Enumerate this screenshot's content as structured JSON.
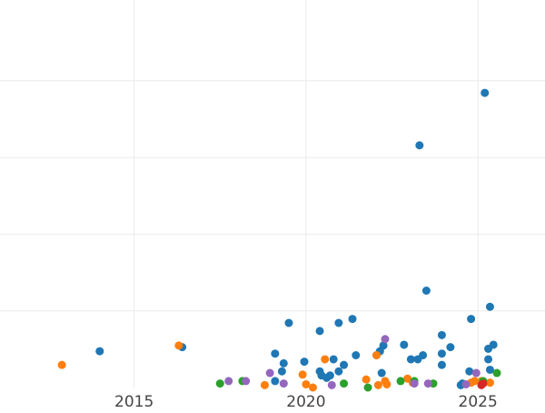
{
  "chart_data": {
    "type": "scatter",
    "title": "",
    "xlabel": "",
    "ylabel": "",
    "x_ticks": [
      2015,
      2020,
      2025
    ],
    "x_tick_labels": [
      "2015",
      "2020",
      "2025"
    ],
    "xlim": [
      2011.1,
      2026.95
    ],
    "ylim": [
      0,
      48
    ],
    "y_gridlines": [
      9.5,
      19,
      28.5,
      38
    ],
    "grid": true,
    "legend": "none",
    "colors": {
      "blue": "#1f77b4",
      "orange": "#ff7f0e",
      "green": "#2ca02c",
      "purple": "#9467bd",
      "red": "#d62728"
    },
    "series": [
      {
        "color": "blue",
        "points": [
          [
            2014.0,
            4.5
          ],
          [
            2016.4,
            5.0
          ],
          [
            2019.1,
            4.2
          ],
          [
            2019.3,
            2.0
          ],
          [
            2019.35,
            3.0
          ],
          [
            2019.5,
            8.0
          ],
          [
            2019.1,
            0.8
          ],
          [
            2019.95,
            3.2
          ],
          [
            2020.4,
            7.0
          ],
          [
            2020.4,
            2.0
          ],
          [
            2020.45,
            1.5
          ],
          [
            2020.6,
            1.2
          ],
          [
            2020.7,
            1.5
          ],
          [
            2020.8,
            3.5
          ],
          [
            2020.95,
            2.0
          ],
          [
            2020.95,
            8.0
          ],
          [
            2021.1,
            2.8
          ],
          [
            2021.35,
            8.5
          ],
          [
            2021.45,
            4.0
          ],
          [
            2022.05,
            4.0
          ],
          [
            2022.15,
            4.5
          ],
          [
            2022.2,
            1.8
          ],
          [
            2022.25,
            5.2
          ],
          [
            2022.85,
            5.3
          ],
          [
            2023.05,
            3.5
          ],
          [
            2023.25,
            3.5
          ],
          [
            2023.3,
            30.0
          ],
          [
            2023.4,
            4.0
          ],
          [
            2023.5,
            12.0
          ],
          [
            2023.95,
            4.2
          ],
          [
            2023.95,
            6.5
          ],
          [
            2023.95,
            2.8
          ],
          [
            2024.2,
            5.0
          ],
          [
            2024.5,
            0.3
          ],
          [
            2024.55,
            0.5
          ],
          [
            2024.75,
            2.0
          ],
          [
            2024.8,
            8.5
          ],
          [
            2025.2,
            36.5
          ],
          [
            2025.3,
            4.8
          ],
          [
            2025.35,
            10.0
          ],
          [
            2025.35,
            2.2
          ],
          [
            2025.3,
            3.5
          ],
          [
            2025.45,
            5.3
          ]
        ]
      },
      {
        "color": "orange",
        "points": [
          [
            2012.9,
            2.8
          ],
          [
            2016.3,
            5.2
          ],
          [
            2018.8,
            0.3
          ],
          [
            2019.9,
            1.6
          ],
          [
            2020.0,
            0.4
          ],
          [
            2020.2,
            0.0
          ],
          [
            2020.55,
            3.5
          ],
          [
            2021.75,
            1.0
          ],
          [
            2022.05,
            4.0
          ],
          [
            2022.1,
            0.3
          ],
          [
            2022.3,
            0.8
          ],
          [
            2022.35,
            0.4
          ],
          [
            2022.95,
            1.1
          ],
          [
            2023.1,
            0.6
          ],
          [
            2024.8,
            0.6
          ],
          [
            2024.9,
            0.8
          ],
          [
            2025.1,
            0.8
          ],
          [
            2025.35,
            0.6
          ]
        ]
      },
      {
        "color": "green",
        "points": [
          [
            2017.5,
            0.5
          ],
          [
            2018.15,
            0.8
          ],
          [
            2021.1,
            0.5
          ],
          [
            2021.8,
            0.0
          ],
          [
            2022.75,
            0.8
          ],
          [
            2023.15,
            0.8
          ],
          [
            2023.7,
            0.5
          ],
          [
            2025.15,
            0.8
          ],
          [
            2025.55,
            1.8
          ]
        ]
      },
      {
        "color": "purple",
        "points": [
          [
            2017.75,
            0.8
          ],
          [
            2018.25,
            0.8
          ],
          [
            2018.95,
            1.8
          ],
          [
            2019.35,
            0.5
          ],
          [
            2020.75,
            0.3
          ],
          [
            2022.3,
            6.0
          ],
          [
            2023.15,
            0.5
          ],
          [
            2023.55,
            0.5
          ],
          [
            2024.65,
            0.4
          ],
          [
            2024.95,
            1.8
          ]
        ]
      },
      {
        "color": "red",
        "points": [
          [
            2025.1,
            0.3
          ],
          [
            2025.15,
            0.5
          ]
        ]
      }
    ]
  }
}
